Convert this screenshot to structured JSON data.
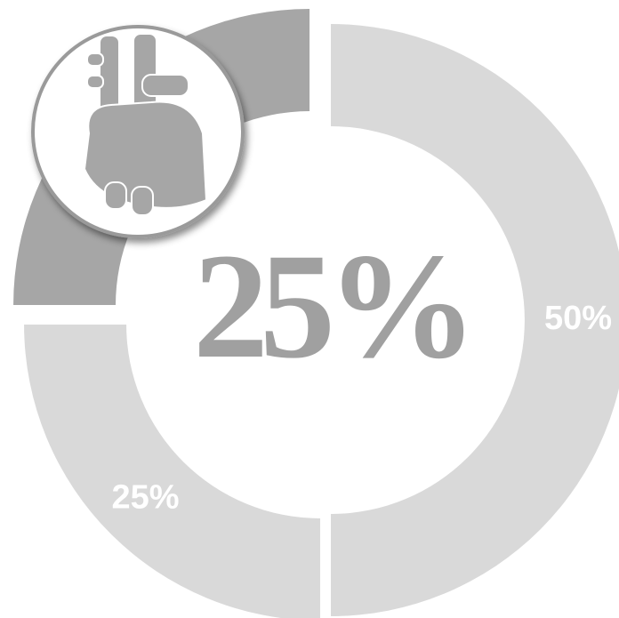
{
  "chart_data": {
    "type": "donut",
    "values": [
      50,
      25,
      25
    ],
    "value_labels": [
      "50%",
      "25%",
      null
    ],
    "colors": [
      "#d9d9d9",
      "#d9d9d9",
      "#a6a6a6"
    ],
    "exploded": [
      false,
      false,
      true
    ],
    "center_label": "25%"
  }
}
